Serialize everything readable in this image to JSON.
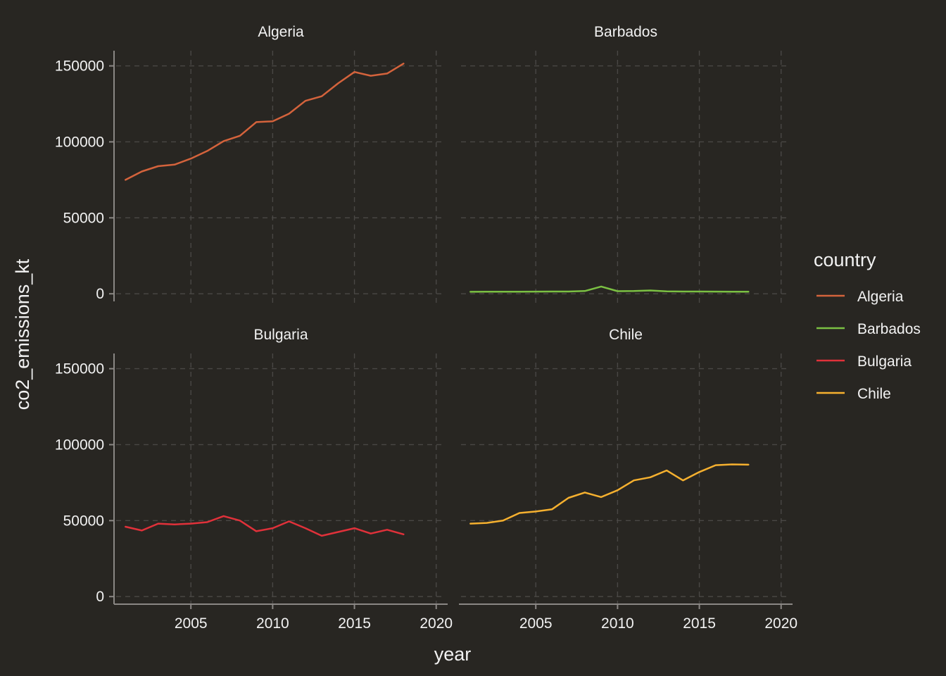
{
  "chart_data": {
    "type": "line",
    "facet_by": "country",
    "xlabel": "year",
    "ylabel": "co2_emissions_kt",
    "xlim": [
      2000.3,
      2020.7
    ],
    "ylim": [
      -5000,
      160000
    ],
    "x_ticks": [
      2005,
      2010,
      2015,
      2020
    ],
    "y_ticks": [
      0,
      50000,
      100000,
      150000
    ],
    "grid": true,
    "legend": {
      "title": "country",
      "placement": "right",
      "entries": [
        "Algeria",
        "Barbados",
        "Bulgaria",
        "Chile"
      ]
    },
    "x": [
      2001,
      2002,
      2003,
      2004,
      2005,
      2006,
      2007,
      2008,
      2009,
      2010,
      2011,
      2012,
      2013,
      2014,
      2015,
      2016,
      2017,
      2018
    ],
    "series": [
      {
        "name": "Algeria",
        "color": "#d4633c",
        "values": [
          75000,
          80500,
          84000,
          85000,
          89000,
          94000,
          100500,
          104000,
          113000,
          113500,
          118500,
          127000,
          130000,
          138500,
          146000,
          143500,
          145000,
          151500
        ]
      },
      {
        "name": "Barbados",
        "color": "#7bc043",
        "values": [
          1300,
          1350,
          1400,
          1400,
          1450,
          1500,
          1500,
          1800,
          4800,
          1700,
          1800,
          2200,
          1600,
          1500,
          1500,
          1450,
          1400,
          1400
        ]
      },
      {
        "name": "Bulgaria",
        "color": "#e0313a",
        "values": [
          46000,
          43500,
          48000,
          47500,
          48000,
          49000,
          53000,
          50000,
          43000,
          45000,
          49500,
          45000,
          40000,
          42500,
          45000,
          41500,
          44000,
          41000
        ]
      },
      {
        "name": "Chile",
        "color": "#f5b02f",
        "values": [
          48000,
          48500,
          50000,
          55000,
          56000,
          57500,
          65000,
          68500,
          65500,
          70000,
          76500,
          78500,
          83000,
          76500,
          82000,
          86500,
          87000,
          86800
        ]
      }
    ]
  }
}
